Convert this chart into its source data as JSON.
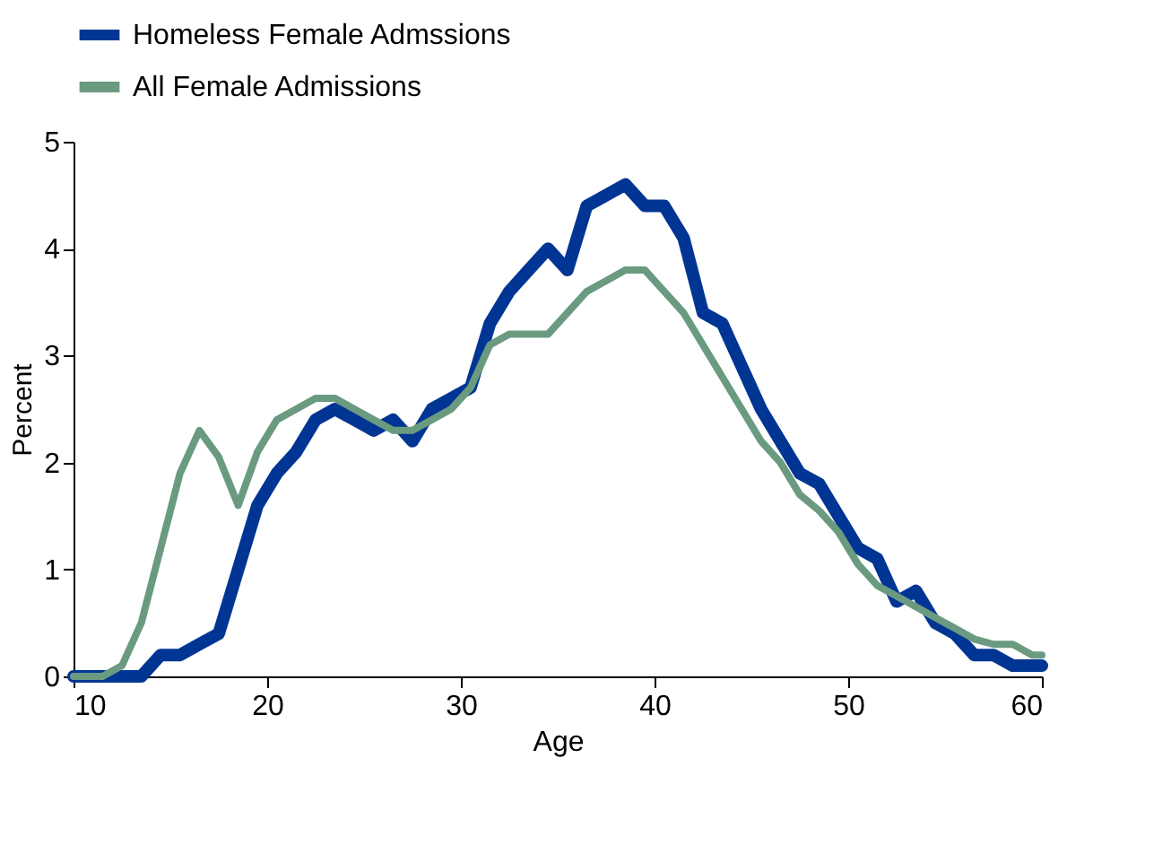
{
  "chart_data": {
    "type": "line",
    "xlabel": "Age",
    "ylabel": "Percent",
    "x": [
      10,
      11.5,
      12.5,
      13.5,
      14.5,
      15.5,
      16.5,
      17.5,
      18.5,
      19.5,
      20.5,
      21.5,
      22.5,
      23.5,
      24.5,
      25.5,
      26.5,
      27.5,
      28.5,
      29.5,
      30.5,
      31.5,
      32.5,
      33.5,
      34.5,
      35.5,
      36.5,
      37.5,
      38.5,
      39.5,
      40.5,
      41.5,
      42.5,
      43.5,
      44.5,
      45.5,
      46.5,
      47.5,
      48.5,
      49.5,
      50.5,
      51.5,
      52.5,
      53.5,
      54.5,
      55.5,
      56.5,
      57.5,
      58.5,
      59.5,
      60
    ],
    "series": [
      {
        "name": "Homeless Female Admssions",
        "color": "#003594",
        "values": [
          0,
          0,
          0,
          0,
          0.2,
          0.2,
          0.3,
          0.4,
          1.0,
          1.6,
          1.9,
          2.1,
          2.4,
          2.5,
          2.4,
          2.3,
          2.4,
          2.2,
          2.5,
          2.6,
          2.7,
          3.3,
          3.6,
          3.8,
          4.0,
          3.8,
          4.4,
          4.5,
          4.6,
          4.4,
          4.4,
          4.1,
          3.4,
          3.3,
          2.9,
          2.5,
          2.2,
          1.9,
          1.8,
          1.5,
          1.2,
          1.1,
          0.7,
          0.8,
          0.5,
          0.4,
          0.2,
          0.2,
          0.1,
          0.1,
          0.1
        ]
      },
      {
        "name": "All Female Admissions",
        "color": "#6a9a80",
        "values": [
          0,
          0,
          0.1,
          0.5,
          1.2,
          1.9,
          2.3,
          2.05,
          1.6,
          2.1,
          2.4,
          2.5,
          2.6,
          2.6,
          2.5,
          2.4,
          2.3,
          2.3,
          2.4,
          2.5,
          2.7,
          3.1,
          3.2,
          3.2,
          3.2,
          3.4,
          3.6,
          3.7,
          3.8,
          3.8,
          3.6,
          3.4,
          3.1,
          2.8,
          2.5,
          2.2,
          2.0,
          1.7,
          1.55,
          1.35,
          1.05,
          0.85,
          0.75,
          0.65,
          0.55,
          0.45,
          0.35,
          0.3,
          0.3,
          0.2,
          0.2
        ]
      }
    ],
    "xlim": [
      10,
      60
    ],
    "xticks": [
      10,
      20,
      30,
      40,
      50,
      60
    ],
    "ylim": [
      0,
      5
    ],
    "yticks": [
      0,
      1,
      2,
      3,
      4,
      5
    ],
    "grid": false,
    "legend": "top",
    "marker": "none",
    "line_style": "solid"
  }
}
